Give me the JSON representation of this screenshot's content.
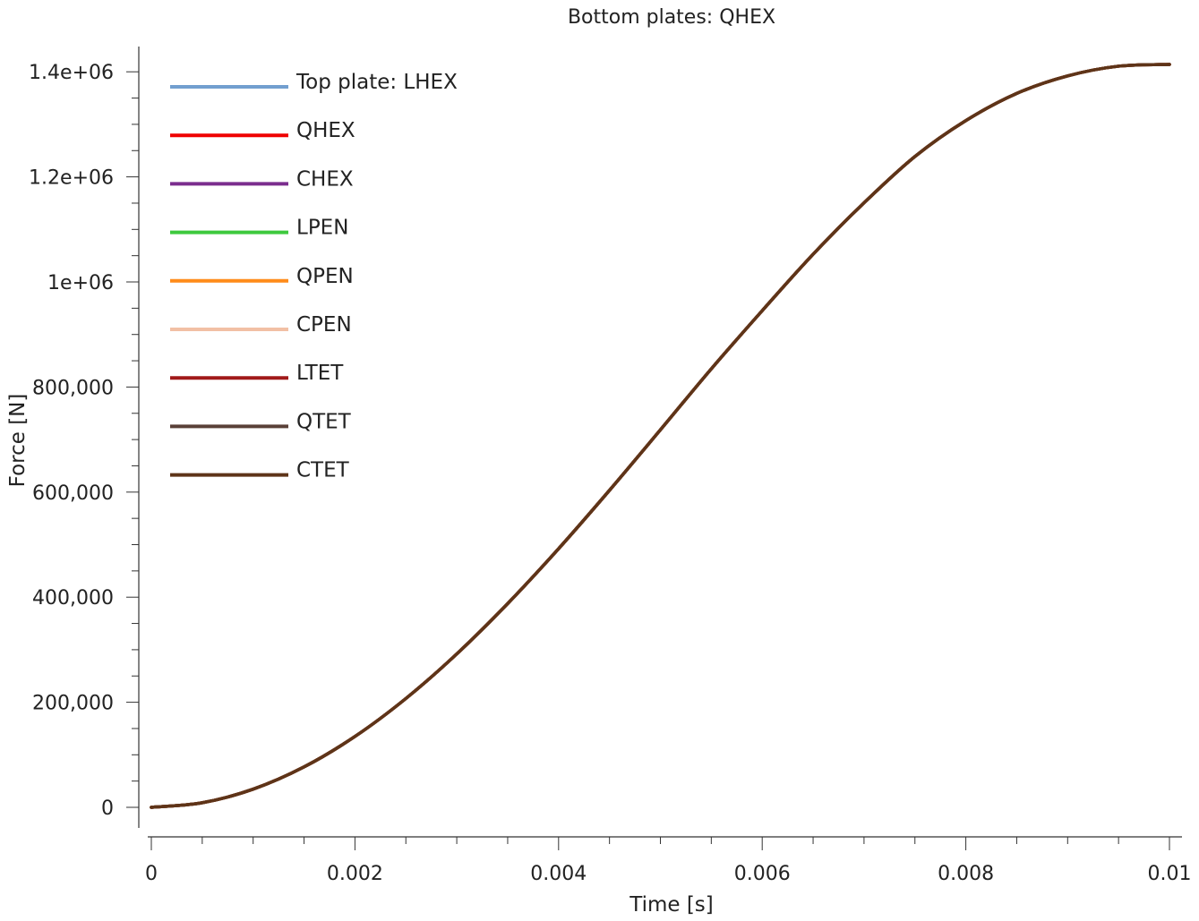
{
  "chart_data": {
    "type": "line",
    "title": "Bottom plates: QHEX",
    "xlabel": "Time [s]",
    "ylabel": "Force [N]",
    "xlim": [
      0,
      0.01
    ],
    "ylim": [
      0,
      1414000
    ],
    "x_ticks": [
      {
        "value": 0,
        "label": "0"
      },
      {
        "value": 0.002,
        "label": "0.002"
      },
      {
        "value": 0.004,
        "label": "0.004"
      },
      {
        "value": 0.006,
        "label": "0.006"
      },
      {
        "value": 0.008,
        "label": "0.008"
      },
      {
        "value": 0.01,
        "label": "0.01"
      }
    ],
    "y_ticks": [
      {
        "value": 0,
        "label": "0"
      },
      {
        "value": 200000,
        "label": "200,000"
      },
      {
        "value": 400000,
        "label": "400,000"
      },
      {
        "value": 600000,
        "label": "600,000"
      },
      {
        "value": 800000,
        "label": "800,000"
      },
      {
        "value": 1000000,
        "label": "1e+06"
      },
      {
        "value": 1200000,
        "label": "1.2e+06"
      },
      {
        "value": 1400000,
        "label": "1.4e+06"
      }
    ],
    "x": [
      0,
      0.0005,
      0.001,
      0.0015,
      0.002,
      0.0025,
      0.003,
      0.0035,
      0.004,
      0.0045,
      0.005,
      0.0055,
      0.006,
      0.0065,
      0.007,
      0.0075,
      0.008,
      0.0085,
      0.009,
      0.0095,
      0.01
    ],
    "series": [
      {
        "name": "Top plate: LHEX",
        "color": "#729fcf",
        "values": [
          0,
          8700,
          34600,
          76900,
          134900,
          207100,
          292000,
          387800,
          492300,
          603400,
          718500,
          834600,
          945300,
          1052800,
          1150500,
          1238700,
          1307100,
          1358800,
          1392200,
          1410700,
          1414000
        ]
      },
      {
        "name": "QHEX",
        "color": "#ef0000",
        "values": [
          0,
          8700,
          34600,
          76900,
          134900,
          207100,
          292000,
          387800,
          492300,
          603400,
          718500,
          834600,
          945300,
          1052800,
          1150500,
          1238700,
          1307100,
          1358800,
          1392200,
          1410700,
          1414000
        ]
      },
      {
        "name": "CHEX",
        "color": "#7b2d8e",
        "values": [
          0,
          8700,
          34600,
          76900,
          134900,
          207100,
          292000,
          387800,
          492300,
          603400,
          718500,
          834600,
          945300,
          1052800,
          1150500,
          1238700,
          1307100,
          1358800,
          1392200,
          1410700,
          1414000
        ]
      },
      {
        "name": "LPEN",
        "color": "#3ec93e",
        "values": [
          0,
          8700,
          34600,
          76900,
          134900,
          207100,
          292000,
          387800,
          492300,
          603400,
          718500,
          834600,
          945300,
          1052800,
          1150500,
          1238700,
          1307100,
          1358800,
          1392200,
          1410700,
          1414000
        ]
      },
      {
        "name": "QPEN",
        "color": "#ff8c1a",
        "values": [
          0,
          8700,
          34600,
          76900,
          134900,
          207100,
          292000,
          387800,
          492300,
          603400,
          718500,
          834600,
          945300,
          1052800,
          1150500,
          1238700,
          1307100,
          1358800,
          1392200,
          1410700,
          1414000
        ]
      },
      {
        "name": "CPEN",
        "color": "#f2c0a5",
        "values": [
          0,
          8700,
          34600,
          76900,
          134900,
          207100,
          292000,
          387800,
          492300,
          603400,
          718500,
          834600,
          945300,
          1052800,
          1150500,
          1238700,
          1307100,
          1358800,
          1392200,
          1410700,
          1414000
        ]
      },
      {
        "name": "LTET",
        "color": "#a11a1a",
        "values": [
          0,
          8700,
          34600,
          76900,
          134900,
          207100,
          292000,
          387800,
          492300,
          603400,
          718500,
          834600,
          945300,
          1052800,
          1150500,
          1238700,
          1307100,
          1358800,
          1392200,
          1410700,
          1414000
        ]
      },
      {
        "name": "QTET",
        "color": "#5a4038",
        "values": [
          0,
          8700,
          34600,
          76900,
          134900,
          207100,
          292000,
          387800,
          492300,
          603400,
          718500,
          834600,
          945300,
          1052800,
          1150500,
          1238700,
          1307100,
          1358800,
          1392200,
          1410700,
          1414000
        ]
      },
      {
        "name": "CTET",
        "color": "#5e3418",
        "values": [
          0,
          8700,
          34600,
          76900,
          134900,
          207100,
          292000,
          387800,
          492300,
          603400,
          718500,
          834600,
          945300,
          1052800,
          1150500,
          1238700,
          1307100,
          1358800,
          1392200,
          1410700,
          1414000
        ]
      }
    ],
    "legend_position": "top-left",
    "grid": false
  }
}
